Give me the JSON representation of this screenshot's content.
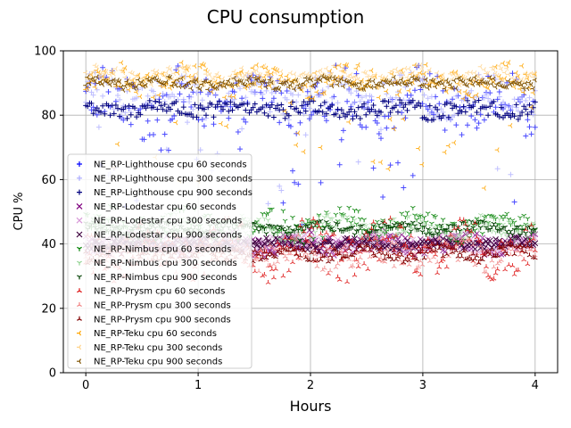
{
  "chart_data": {
    "type": "scatter",
    "title": "CPU consumption",
    "xlabel": "Hours",
    "ylabel": "CPU %",
    "xlim": [
      -0.2,
      4.2
    ],
    "ylim": [
      0,
      100
    ],
    "xticks": [
      0,
      1,
      2,
      3,
      4
    ],
    "yticks": [
      0,
      20,
      40,
      60,
      80,
      100
    ],
    "grid": true,
    "legend_position": "center-left",
    "series": [
      {
        "name": "NE_RP-Lighthouse cpu 60 seconds",
        "color": "#0000ff",
        "marker": "plus",
        "opacity": 0.7,
        "level": 84,
        "spread": 8,
        "dips": true
      },
      {
        "name": "NE_RP-Lighthouse cpu 300 seconds",
        "color": "#aaaaff",
        "marker": "plus",
        "opacity": 0.75,
        "level": 86,
        "spread": 5,
        "dips": true
      },
      {
        "name": "NE_RP-Lighthouse cpu 900 seconds",
        "color": "#00007f",
        "marker": "plus",
        "opacity": 1.0,
        "level": 82,
        "spread": 2.5,
        "dips": false
      },
      {
        "name": "NE_RP-Lodestar cpu 60 seconds",
        "color": "#800080",
        "marker": "x",
        "opacity": 0.8,
        "level": 40,
        "spread": 3,
        "dips": false
      },
      {
        "name": "NE_RP-Lodestar cpu 300 seconds",
        "color": "#d89ad8",
        "marker": "x",
        "opacity": 0.7,
        "level": 40,
        "spread": 2.5,
        "dips": false
      },
      {
        "name": "NE_RP-Lodestar cpu 900 seconds",
        "color": "#400040",
        "marker": "x",
        "opacity": 1.0,
        "level": 40,
        "spread": 1.5,
        "dips": false
      },
      {
        "name": "NE_RP-Nimbus cpu 60 seconds",
        "color": "#008000",
        "marker": "tri_down",
        "opacity": 0.85,
        "level": 46,
        "spread": 4,
        "dips": false
      },
      {
        "name": "NE_RP-Nimbus cpu 300 seconds",
        "color": "#8fd18f",
        "marker": "tri_down",
        "opacity": 0.7,
        "level": 45,
        "spread": 3,
        "dips": false
      },
      {
        "name": "NE_RP-Nimbus cpu 900 seconds",
        "color": "#003f00",
        "marker": "tri_down",
        "opacity": 1.0,
        "level": 45,
        "spread": 1.5,
        "dips": false
      },
      {
        "name": "NE_RP-Prysm cpu 60 seconds",
        "color": "#dd1111",
        "marker": "tri_up",
        "opacity": 0.85,
        "level": 38,
        "spread": 7,
        "dips": false
      },
      {
        "name": "NE_RP-Prysm cpu 300 seconds",
        "color": "#f08080",
        "marker": "tri_up",
        "opacity": 0.8,
        "level": 37,
        "spread": 4,
        "dips": false
      },
      {
        "name": "NE_RP-Prysm cpu 900 seconds",
        "color": "#7f0000",
        "marker": "tri_up",
        "opacity": 1.0,
        "level": 37,
        "spread": 2,
        "dips": false
      },
      {
        "name": "NE_RP-Teku cpu 60 seconds",
        "color": "#ffa500",
        "marker": "tri_left",
        "opacity": 0.85,
        "level": 91,
        "spread": 4,
        "dips": true
      },
      {
        "name": "NE_RP-Teku cpu 300 seconds",
        "color": "#ffd38a",
        "marker": "tri_left",
        "opacity": 0.8,
        "level": 92,
        "spread": 2.5,
        "dips": false
      },
      {
        "name": "NE_RP-Teku cpu 900 seconds",
        "color": "#7f5200",
        "marker": "tri_left",
        "opacity": 1.0,
        "level": 90,
        "spread": 1.5,
        "dips": false
      }
    ]
  }
}
